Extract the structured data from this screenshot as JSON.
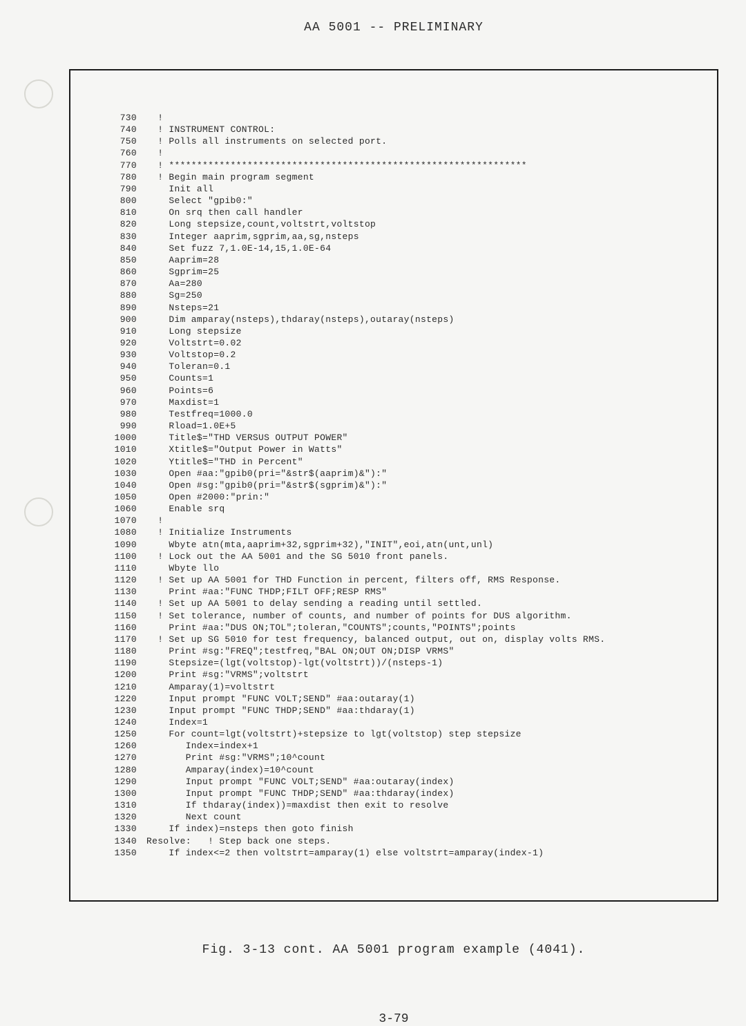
{
  "header": "AA 5001 -- PRELIMINARY",
  "caption": "Fig. 3-13 cont.  AA 5001 program example (4041).",
  "page_number": "3-79",
  "code_lines": [
    {
      "num": "730",
      "text": "  !"
    },
    {
      "num": "740",
      "text": "  ! INSTRUMENT CONTROL:"
    },
    {
      "num": "750",
      "text": "  ! Polls all instruments on selected port."
    },
    {
      "num": "760",
      "text": "  !"
    },
    {
      "num": "770",
      "text": "  ! ****************************************************************"
    },
    {
      "num": "780",
      "text": "  ! Begin main program segment"
    },
    {
      "num": "790",
      "text": "    Init all"
    },
    {
      "num": "800",
      "text": "    Select \"gpib0:\""
    },
    {
      "num": "810",
      "text": "    On srq then call handler"
    },
    {
      "num": "820",
      "text": "    Long stepsize,count,voltstrt,voltstop"
    },
    {
      "num": "830",
      "text": "    Integer aaprim,sgprim,aa,sg,nsteps"
    },
    {
      "num": "840",
      "text": "    Set fuzz 7,1.0E-14,15,1.0E-64"
    },
    {
      "num": "850",
      "text": "    Aaprim=28"
    },
    {
      "num": "860",
      "text": "    Sgprim=25"
    },
    {
      "num": "870",
      "text": "    Aa=280"
    },
    {
      "num": "880",
      "text": "    Sg=250"
    },
    {
      "num": "890",
      "text": "    Nsteps=21"
    },
    {
      "num": "900",
      "text": "    Dim amparay(nsteps),thdaray(nsteps),outaray(nsteps)"
    },
    {
      "num": "910",
      "text": "    Long stepsize"
    },
    {
      "num": "920",
      "text": "    Voltstrt=0.02"
    },
    {
      "num": "930",
      "text": "    Voltstop=0.2"
    },
    {
      "num": "940",
      "text": "    Toleran=0.1"
    },
    {
      "num": "950",
      "text": "    Counts=1"
    },
    {
      "num": "960",
      "text": "    Points=6"
    },
    {
      "num": "970",
      "text": "    Maxdist=1"
    },
    {
      "num": "980",
      "text": "    Testfreq=1000.0"
    },
    {
      "num": "990",
      "text": "    Rload=1.0E+5"
    },
    {
      "num": "1000",
      "text": "    Title$=\"THD VERSUS OUTPUT POWER\""
    },
    {
      "num": "1010",
      "text": "    Xtitle$=\"Output Power in Watts\""
    },
    {
      "num": "1020",
      "text": "    Ytitle$=\"THD in Percent\""
    },
    {
      "num": "1030",
      "text": "    Open #aa:\"gpib0(pri=\"&str$(aaprim)&\"):\""
    },
    {
      "num": "1040",
      "text": "    Open #sg:\"gpib0(pri=\"&str$(sgprim)&\"):\""
    },
    {
      "num": "1050",
      "text": "    Open #2000:\"prin:\""
    },
    {
      "num": "1060",
      "text": "    Enable srq"
    },
    {
      "num": "1070",
      "text": "  !"
    },
    {
      "num": "1080",
      "text": "  ! Initialize Instruments"
    },
    {
      "num": "1090",
      "text": "    Wbyte atn(mta,aaprim+32,sgprim+32),\"INIT\",eoi,atn(unt,unl)"
    },
    {
      "num": "1100",
      "text": "  ! Lock out the AA 5001 and the SG 5010 front panels."
    },
    {
      "num": "1110",
      "text": "    Wbyte llo"
    },
    {
      "num": "1120",
      "text": "  ! Set up AA 5001 for THD Function in percent, filters off, RMS Response."
    },
    {
      "num": "1130",
      "text": "    Print #aa:\"FUNC THDP;FILT OFF;RESP RMS\""
    },
    {
      "num": "1140",
      "text": "  ! Set up AA 5001 to delay sending a reading until settled."
    },
    {
      "num": "1150",
      "text": "  ! Set tolerance, number of counts, and number of points for DUS algorithm."
    },
    {
      "num": "1160",
      "text": "    Print #aa:\"DUS ON;TOL\";toleran,\"COUNTS\";counts,\"POINTS\";points"
    },
    {
      "num": "1170",
      "text": "  ! Set up SG 5010 for test frequency, balanced output, out on, display volts RMS."
    },
    {
      "num": "1180",
      "text": "    Print #sg:\"FREQ\";testfreq,\"BAL ON;OUT ON;DISP VRMS\""
    },
    {
      "num": "1190",
      "text": "    Stepsize=(lgt(voltstop)-lgt(voltstrt))/(nsteps-1)"
    },
    {
      "num": "1200",
      "text": "    Print #sg:\"VRMS\";voltstrt"
    },
    {
      "num": "1210",
      "text": "    Amparay(1)=voltstrt"
    },
    {
      "num": "1220",
      "text": "    Input prompt \"FUNC VOLT;SEND\" #aa:outaray(1)"
    },
    {
      "num": "1230",
      "text": "    Input prompt \"FUNC THDP;SEND\" #aa:thdaray(1)"
    },
    {
      "num": "1240",
      "text": "    Index=1"
    },
    {
      "num": "1250",
      "text": "    For count=lgt(voltstrt)+stepsize to lgt(voltstop) step stepsize"
    },
    {
      "num": "1260",
      "text": "       Index=index+1"
    },
    {
      "num": "1270",
      "text": "       Print #sg:\"VRMS\";10^count"
    },
    {
      "num": "1280",
      "text": "       Amparay(index)=10^count"
    },
    {
      "num": "1290",
      "text": "       Input prompt \"FUNC VOLT;SEND\" #aa:outaray(index)"
    },
    {
      "num": "1300",
      "text": "       Input prompt \"FUNC THDP;SEND\" #aa:thdaray(index)"
    },
    {
      "num": "1310",
      "text": "       If thdaray(index))=maxdist then exit to resolve"
    },
    {
      "num": "1320",
      "text": "       Next count"
    },
    {
      "num": "1330",
      "text": "    If index)=nsteps then goto finish"
    },
    {
      "num": "1340",
      "text": "Resolve:   ! Step back one steps."
    },
    {
      "num": "1350",
      "text": "    If index<=2 then voltstrt=amparay(1) else voltstrt=amparay(index-1)"
    }
  ]
}
